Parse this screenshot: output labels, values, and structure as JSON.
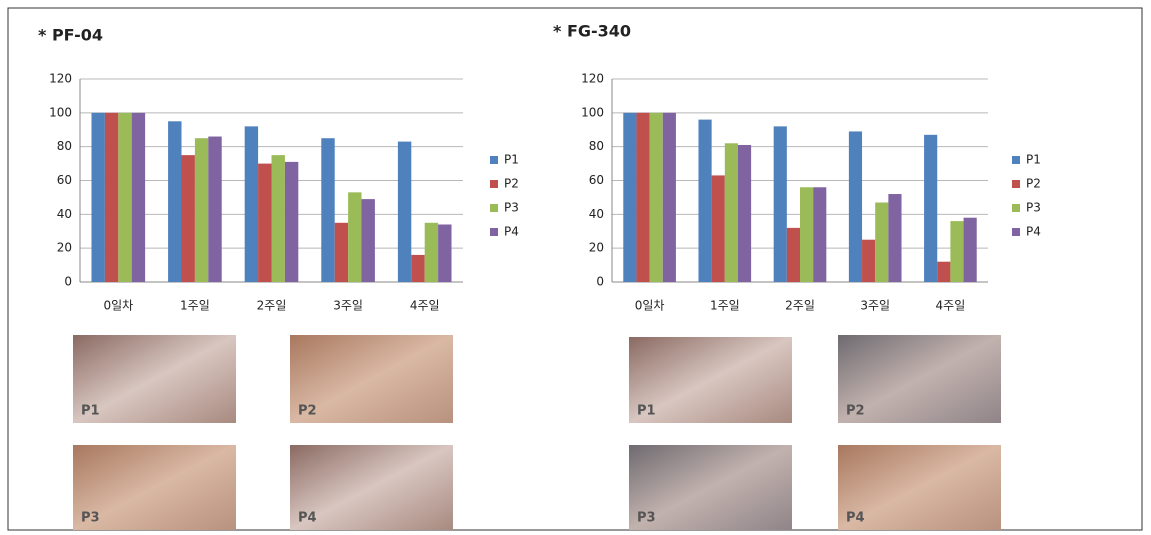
{
  "chart_data": [
    {
      "type": "bar",
      "title": "* PF-04",
      "categories": [
        "0일차",
        "1주일",
        "2주일",
        "3주일",
        "4주일"
      ],
      "series": [
        {
          "name": "P1",
          "color": "#4f81bd",
          "values": [
            100,
            95,
            92,
            85,
            83
          ]
        },
        {
          "name": "P2",
          "color": "#c0504d",
          "values": [
            100,
            75,
            70,
            35,
            16
          ]
        },
        {
          "name": "P3",
          "color": "#9bbb59",
          "values": [
            100,
            85,
            75,
            53,
            35
          ]
        },
        {
          "name": "P4",
          "color": "#8064a2",
          "values": [
            100,
            86,
            71,
            49,
            34
          ]
        }
      ],
      "ylim": [
        0,
        120
      ],
      "yticks": [
        0,
        20,
        40,
        60,
        80,
        100,
        120
      ],
      "grid": true,
      "legend": "right",
      "image_labels": [
        "P1",
        "P2",
        "P3",
        "P4"
      ]
    },
    {
      "type": "bar",
      "title": "* FG-340",
      "categories": [
        "0일차",
        "1주일",
        "2주일",
        "3주일",
        "4주일"
      ],
      "series": [
        {
          "name": "P1",
          "color": "#4f81bd",
          "values": [
            100,
            96,
            92,
            89,
            87
          ]
        },
        {
          "name": "P2",
          "color": "#c0504d",
          "values": [
            100,
            63,
            32,
            25,
            12
          ]
        },
        {
          "name": "P3",
          "color": "#9bbb59",
          "values": [
            100,
            82,
            56,
            47,
            36
          ]
        },
        {
          "name": "P4",
          "color": "#8064a2",
          "values": [
            100,
            81,
            56,
            52,
            38
          ]
        }
      ],
      "ylim": [
        0,
        120
      ],
      "yticks": [
        0,
        20,
        40,
        60,
        80,
        100,
        120
      ],
      "grid": true,
      "legend": "right",
      "image_labels": [
        "P1",
        "P2",
        "P3",
        "P4"
      ]
    }
  ]
}
